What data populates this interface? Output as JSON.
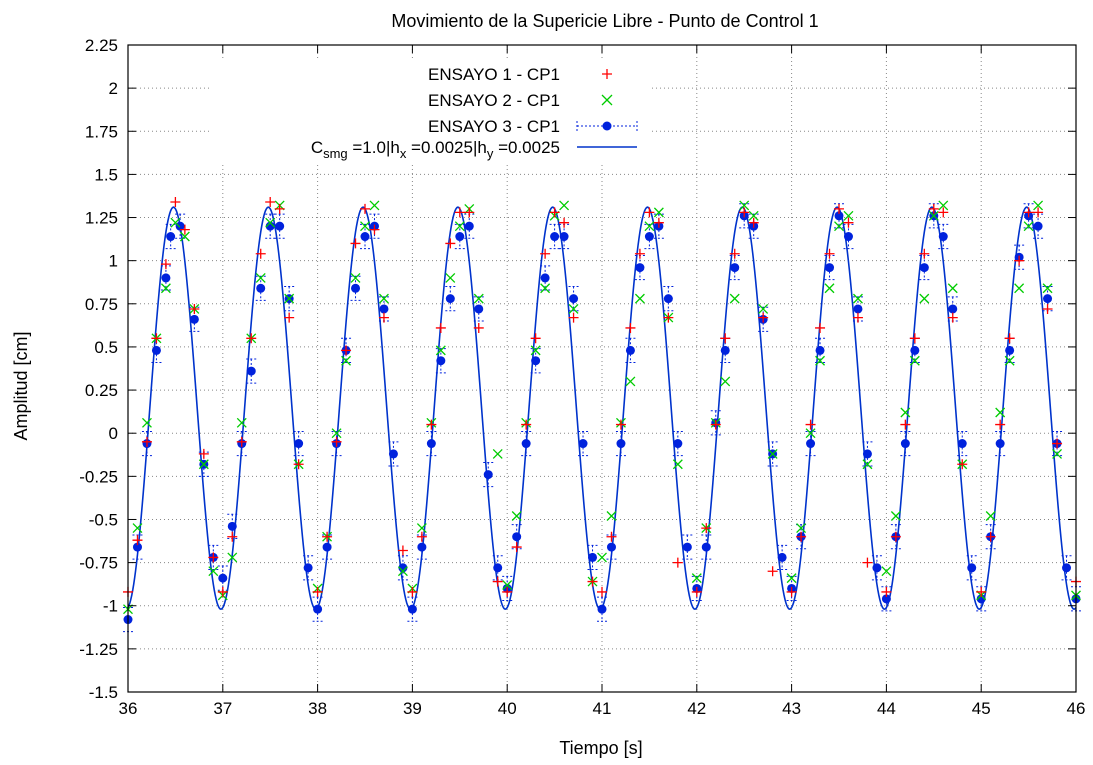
{
  "chart_data": {
    "type": "scatter",
    "title": "Movimiento de la Supericie Libre - Punto de Control 1",
    "xlabel": "Tiempo [s]",
    "ylabel": "Amplitud [cm]",
    "xlim": [
      36,
      46
    ],
    "ylim": [
      -1.5,
      2.25
    ],
    "xticks": [
      "36",
      "37",
      "38",
      "39",
      "40",
      "41",
      "42",
      "43",
      "44",
      "45",
      "46"
    ],
    "yticks": [
      "-1.5",
      "-1.25",
      "-1",
      "-0.75",
      "-0.5",
      "-0.25",
      "0",
      "0.25",
      "0.5",
      "0.75",
      "1",
      "1.25",
      "1.5",
      "1.75",
      "2",
      "2.25"
    ],
    "grid": true,
    "legend_position": "top-center",
    "legend": {
      "s1": "ENSAYO 1 - CP1",
      "s2": "ENSAYO 2 - CP1",
      "s3": "ENSAYO 3 - CP1",
      "s4_prefix": "C",
      "s4_sub1": "smg",
      "s4_mid1": " =1.0|h",
      "s4_sub2": "x",
      "s4_mid2": " =0.0025|h",
      "s4_sub3": "y",
      "s4_end": " =0.0025"
    },
    "colors": {
      "s1": "#ff0000",
      "s2": "#00cc00",
      "s3": "#0022dd",
      "s4": "#0033cc"
    },
    "series": [
      {
        "name": "ENSAYO 1 - CP1",
        "marker": "plus",
        "x": [
          36.0,
          36.1,
          36.2,
          36.3,
          36.4,
          36.5,
          36.6,
          36.7,
          36.8,
          36.9,
          37.0,
          37.1,
          37.2,
          37.3,
          37.4,
          37.5,
          37.6,
          37.7,
          37.8,
          38.0,
          38.1,
          38.2,
          38.3,
          38.4,
          38.5,
          38.6,
          38.7,
          38.9,
          39.0,
          39.1,
          39.2,
          39.3,
          39.4,
          39.5,
          39.6,
          39.7,
          39.9,
          40.0,
          40.1,
          40.2,
          40.3,
          40.4,
          40.5,
          40.6,
          40.7,
          40.9,
          41.0,
          41.1,
          41.2,
          41.3,
          41.4,
          41.5,
          41.6,
          41.7,
          41.8,
          42.0,
          42.1,
          42.2,
          42.3,
          42.4,
          42.5,
          42.6,
          42.7,
          42.8,
          43.0,
          43.1,
          43.2,
          43.3,
          43.4,
          43.5,
          43.6,
          43.7,
          43.8,
          44.0,
          44.1,
          44.2,
          44.3,
          44.4,
          44.5,
          44.6,
          44.7,
          44.8,
          45.0,
          45.1,
          45.2,
          45.3,
          45.4,
          45.5,
          45.6,
          45.7,
          45.8,
          46.0
        ],
        "y": [
          -0.92,
          -0.62,
          -0.05,
          0.55,
          0.98,
          1.34,
          1.18,
          0.72,
          -0.12,
          -0.72,
          -0.92,
          -0.6,
          -0.05,
          0.55,
          1.04,
          1.34,
          1.3,
          0.67,
          -0.18,
          -0.92,
          -0.6,
          -0.05,
          0.48,
          1.1,
          1.3,
          1.18,
          0.67,
          -0.68,
          -0.92,
          -0.6,
          0.05,
          0.61,
          1.1,
          1.28,
          1.28,
          0.61,
          -0.86,
          -0.92,
          -0.66,
          0.05,
          0.55,
          1.04,
          1.28,
          1.22,
          0.67,
          -0.86,
          -0.92,
          -0.6,
          0.05,
          0.61,
          1.04,
          1.28,
          1.22,
          0.67,
          -0.75,
          -0.92,
          -0.55,
          0.05,
          0.55,
          1.04,
          1.28,
          1.22,
          0.67,
          -0.8,
          -0.92,
          -0.6,
          0.05,
          0.61,
          1.04,
          1.3,
          1.22,
          0.67,
          -0.75,
          -0.92,
          -0.6,
          0.05,
          0.55,
          1.04,
          1.3,
          1.28,
          0.67,
          -0.18,
          -0.92,
          -0.6,
          0.05,
          0.55,
          1.0,
          1.28,
          1.28,
          0.72,
          -0.06,
          -0.86
        ],
        "y_error": 0
      },
      {
        "name": "ENSAYO 2 - CP1",
        "marker": "cross",
        "x": [
          36.0,
          36.1,
          36.2,
          36.3,
          36.4,
          36.5,
          36.6,
          36.7,
          36.8,
          36.9,
          37.0,
          37.1,
          37.2,
          37.3,
          37.4,
          37.5,
          37.6,
          37.7,
          37.8,
          38.0,
          38.1,
          38.2,
          38.3,
          38.4,
          38.5,
          38.6,
          38.7,
          38.9,
          39.0,
          39.1,
          39.2,
          39.3,
          39.4,
          39.5,
          39.6,
          39.7,
          39.9,
          40.0,
          40.1,
          40.2,
          40.3,
          40.4,
          40.5,
          40.6,
          40.7,
          40.9,
          41.0,
          41.1,
          41.2,
          41.3,
          41.4,
          41.5,
          41.6,
          41.7,
          41.8,
          42.0,
          42.1,
          42.2,
          42.3,
          42.4,
          42.5,
          42.6,
          42.7,
          42.8,
          43.0,
          43.1,
          43.2,
          43.3,
          43.4,
          43.5,
          43.6,
          43.7,
          43.8,
          44.0,
          44.1,
          44.2,
          44.3,
          44.4,
          44.5,
          44.6,
          44.7,
          44.8,
          45.0,
          45.1,
          45.2,
          45.3,
          45.4,
          45.5,
          45.6,
          45.7,
          45.8,
          46.0
        ],
        "y": [
          -1.02,
          -0.55,
          0.06,
          0.55,
          0.84,
          1.22,
          1.14,
          0.72,
          -0.18,
          -0.8,
          -0.94,
          -0.72,
          0.06,
          0.55,
          0.9,
          1.22,
          1.32,
          0.78,
          -0.18,
          -0.9,
          -0.6,
          0.0,
          0.42,
          0.9,
          1.2,
          1.32,
          0.78,
          -0.8,
          -0.9,
          -0.55,
          0.06,
          0.48,
          0.9,
          1.2,
          1.3,
          0.78,
          -0.12,
          -0.88,
          -0.48,
          0.06,
          0.48,
          0.84,
          1.26,
          1.32,
          0.72,
          -0.86,
          -0.72,
          -0.48,
          0.06,
          0.3,
          0.78,
          1.2,
          1.28,
          0.67,
          -0.18,
          -0.84,
          -0.55,
          0.06,
          0.3,
          0.78,
          1.32,
          1.26,
          0.72,
          -0.12,
          -0.84,
          -0.55,
          0.0,
          0.42,
          0.84,
          1.2,
          1.26,
          0.78,
          -0.18,
          -0.8,
          -0.48,
          0.12,
          0.42,
          0.78,
          1.26,
          1.32,
          0.84,
          -0.18,
          -0.94,
          -0.48,
          0.12,
          0.42,
          0.84,
          1.2,
          1.32,
          0.84,
          -0.12,
          -0.94
        ],
        "y_error": 0
      },
      {
        "name": "ENSAYO 3 - CP1",
        "marker": "dot-errorbar",
        "x": [
          36.0,
          36.1,
          36.2,
          36.3,
          36.4,
          36.45,
          36.55,
          36.7,
          36.8,
          36.9,
          37.0,
          37.1,
          37.2,
          37.3,
          37.4,
          37.5,
          37.6,
          37.7,
          37.8,
          37.9,
          38.0,
          38.1,
          38.2,
          38.3,
          38.4,
          38.5,
          38.6,
          38.7,
          38.8,
          38.9,
          39.0,
          39.1,
          39.2,
          39.3,
          39.4,
          39.5,
          39.6,
          39.7,
          39.8,
          39.9,
          40.0,
          40.1,
          40.2,
          40.3,
          40.4,
          40.5,
          40.6,
          40.7,
          40.8,
          40.9,
          41.0,
          41.1,
          41.2,
          41.3,
          41.4,
          41.5,
          41.6,
          41.7,
          41.8,
          41.9,
          42.0,
          42.1,
          42.2,
          42.3,
          42.4,
          42.5,
          42.6,
          42.7,
          42.8,
          42.9,
          43.0,
          43.1,
          43.2,
          43.3,
          43.4,
          43.5,
          43.6,
          43.7,
          43.8,
          43.9,
          44.0,
          44.1,
          44.2,
          44.3,
          44.4,
          44.5,
          44.6,
          44.7,
          44.8,
          44.9,
          45.0,
          45.1,
          45.2,
          45.3,
          45.4,
          45.5,
          45.6,
          45.7,
          45.8,
          45.9,
          46.0
        ],
        "y": [
          -1.08,
          -0.66,
          -0.06,
          0.48,
          0.9,
          1.14,
          1.2,
          0.66,
          -0.18,
          -0.72,
          -0.84,
          -0.54,
          -0.06,
          0.36,
          0.84,
          1.2,
          1.2,
          0.78,
          -0.06,
          -0.78,
          -1.02,
          -0.66,
          -0.06,
          0.48,
          0.84,
          1.14,
          1.2,
          0.72,
          -0.12,
          -0.78,
          -1.02,
          -0.66,
          -0.06,
          0.42,
          0.78,
          1.14,
          1.2,
          0.72,
          -0.24,
          -0.78,
          -0.9,
          -0.6,
          -0.06,
          0.42,
          0.9,
          1.14,
          1.14,
          0.78,
          -0.06,
          -0.72,
          -1.02,
          -0.66,
          -0.06,
          0.48,
          0.96,
          1.14,
          1.2,
          0.78,
          -0.06,
          -0.66,
          -0.9,
          -0.66,
          0.06,
          0.48,
          0.96,
          1.26,
          1.2,
          0.66,
          -0.12,
          -0.72,
          -0.9,
          -0.6,
          -0.06,
          0.48,
          0.96,
          1.26,
          1.14,
          0.72,
          -0.12,
          -0.78,
          -0.96,
          -0.6,
          -0.06,
          0.48,
          0.96,
          1.26,
          1.14,
          0.72,
          -0.06,
          -0.78,
          -0.96,
          -0.6,
          -0.06,
          0.48,
          1.02,
          1.26,
          1.2,
          0.78,
          -0.06,
          -0.78,
          -0.96
        ],
        "y_error": 0.07
      },
      {
        "name": "C_smg =1.0|h_x =0.0025|h_y =0.0025",
        "marker": "line",
        "function": "sine",
        "offset": 0.145,
        "amplitude": 1.165,
        "period": 1.0,
        "peak_at": 36.48
      }
    ]
  }
}
